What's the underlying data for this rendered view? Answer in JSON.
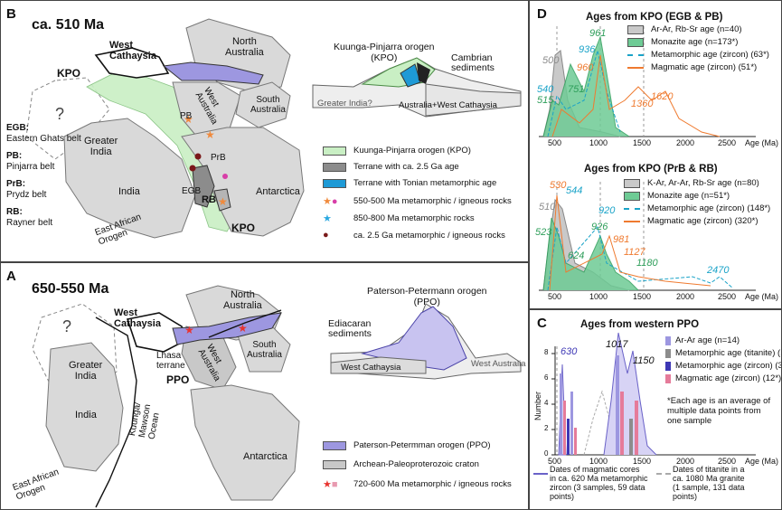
{
  "panelB": {
    "label": "B",
    "title": "ca. 510  Ma",
    "abbrev": [
      {
        "abbr": "EGB:",
        "full": "Eastern Ghats belt"
      },
      {
        "abbr": "PB:",
        "full": "Pinjarra belt"
      },
      {
        "abbr": "PrB:",
        "full": "Prydz belt"
      },
      {
        "abbr": "RB:",
        "full": "Rayner belt"
      }
    ],
    "map_labels": {
      "west_cathaysia": "West\nCathaysia",
      "kpo_left": "KPO",
      "kpo_bottom": "KPO",
      "north_australia": "North\nAustralia",
      "south_australia": "South\nAustralia",
      "west_australia": "West\nAustralia",
      "greater_india": "Greater\nIndia",
      "india": "India",
      "antarctica": "Antarctica",
      "east_african": "East African\nOrogen",
      "question": "?",
      "pb": "PB",
      "prb": "PrB",
      "egb": "EGB",
      "rb": "RB"
    },
    "section": {
      "title": "Kuunga-Pinjarra orogen\n(KPO)",
      "cambrian": "Cambrian\nsediments",
      "greater_india": "Greater India?",
      "australia": "Australia+West Cathaysia"
    },
    "legend": [
      {
        "label": "Kuunga-Pinjarra orogen (KPO)",
        "color": "#c9efc4",
        "kind": "box"
      },
      {
        "label": "Terrane with ca. 2.5 Ga age",
        "color": "#8c8c8c",
        "kind": "box"
      },
      {
        "label": "Terrane with Tonian metamorphic age",
        "color": "#1e9ad6",
        "kind": "box"
      },
      {
        "label": "550-500 Ma metamorphic / igneous rocks",
        "color": "#f08a3c",
        "kind": "starcircle"
      },
      {
        "label": "850-800 Ma metamorphic rocks",
        "color": "#29a8e0",
        "kind": "star"
      },
      {
        "label": "ca. 2.5 Ga metamorphic / igneous rocks",
        "color": "#7a1a1a",
        "kind": "circle"
      }
    ]
  },
  "panelA": {
    "label": "A",
    "title": "650-550  Ma",
    "map_labels": {
      "west_cathaysia": "West\nCathaysia",
      "lhasa": "Lhasa\nterrane",
      "ppo": "PPO",
      "north_australia": "North\nAustralia",
      "south_australia": "South\nAustralia",
      "west_australia": "West\nAustralia",
      "greater_india": "Greater\nIndia",
      "india": "India",
      "antarctica": "Antarctica",
      "east_african": "East African\nOrogen",
      "ocean": "Kuunga/\nMawson\nOcean",
      "question": "?"
    },
    "section": {
      "title": "Paterson-Petermann orogen\n(PPO)",
      "ediacaran": "Ediacaran\nsediments",
      "west_cathaysia": "West Cathaysia",
      "west_australia": "West Australia"
    },
    "legend": [
      {
        "label": "Paterson-Petermman orogen (PPO)",
        "color": "#9d97e0",
        "kind": "box"
      },
      {
        "label": "Archean-Paleoproterozoic craton",
        "color": "#c8c8c8",
        "kind": "box"
      },
      {
        "label": "720-600 Ma metamorphic / igneous rocks",
        "color": "#e8332f",
        "kind": "starsq"
      }
    ]
  },
  "panelD": {
    "label": "D",
    "top": {
      "title": "Ages from KPO (EGB & PB)",
      "legend": [
        {
          "label": "Ar-Ar, Rb-Sr age (n=40)",
          "color": "#9a9a9a"
        },
        {
          "label": "Monazite age (n=173*)",
          "color": "#2e9e5a"
        },
        {
          "label": "Metamorphic age (zircon) (63*)",
          "color": "#1aa3c8"
        },
        {
          "label": "Magmatic age (zircon) (51*)",
          "color": "#ef7a2f"
        }
      ],
      "peaks": [
        {
          "label": "500",
          "age": 500,
          "color": "#8c8c8c"
        },
        {
          "label": "540",
          "age": 540,
          "color": "#1aa3c8"
        },
        {
          "label": "515",
          "age": 515,
          "color": "#2e9e5a"
        },
        {
          "label": "751",
          "age": 751,
          "color": "#2e9e5a"
        },
        {
          "label": "936",
          "age": 936,
          "color": "#1aa3c8"
        },
        {
          "label": "960",
          "age": 960,
          "color": "#ef7a2f"
        },
        {
          "label": "961",
          "age": 961,
          "color": "#2e9e5a"
        },
        {
          "label": "1360",
          "age": 1360,
          "color": "#ef7a2f"
        },
        {
          "label": "1620",
          "age": 1620,
          "color": "#ef7a2f"
        }
      ],
      "axis_ticks": [
        "500",
        "1000",
        "1500",
        "2000",
        "2500",
        "Age (Ma)"
      ]
    },
    "bottom": {
      "title": "Ages from KPO (PrB & RB)",
      "legend": [
        {
          "label": "K-Ar, Ar-Ar, Rb-Sr age (n=80)",
          "color": "#9a9a9a"
        },
        {
          "label": "Monazite age (n=51*)",
          "color": "#2e9e5a"
        },
        {
          "label": "Metamorphic age (zircon) (148*)",
          "color": "#1aa3c8"
        },
        {
          "label": "Magmatic age (zircon) (320*)",
          "color": "#ef7a2f"
        }
      ],
      "peaks": [
        {
          "label": "530",
          "age": 530,
          "color": "#ef7a2f"
        },
        {
          "label": "510",
          "age": 510,
          "color": "#8c8c8c"
        },
        {
          "label": "544",
          "age": 544,
          "color": "#1aa3c8"
        },
        {
          "label": "523",
          "age": 523,
          "color": "#2e9e5a"
        },
        {
          "label": "624",
          "age": 624,
          "color": "#2e9e5a"
        },
        {
          "label": "920",
          "age": 920,
          "color": "#1aa3c8"
        },
        {
          "label": "926",
          "age": 926,
          "color": "#2e9e5a"
        },
        {
          "label": "981",
          "age": 981,
          "color": "#ef7a2f"
        },
        {
          "label": "1127",
          "age": 1127,
          "color": "#ef7a2f"
        },
        {
          "label": "1180",
          "age": 1180,
          "color": "#2e9e5a"
        },
        {
          "label": "2470",
          "age": 2470,
          "color": "#1aa3c8"
        }
      ],
      "axis_ticks": [
        "500",
        "1000",
        "1500",
        "2000",
        "2500",
        "Age (Ma)"
      ]
    }
  },
  "panelC": {
    "label": "C",
    "title": "Ages from western PPO",
    "legend": [
      {
        "label": "Ar-Ar age (n=14)",
        "color": "#9d97e0"
      },
      {
        "label": "Metamorphic age (titanite) (1*)",
        "color": "#8c8c8c"
      },
      {
        "label": "Metamorphic age (zircon) (3*)",
        "color": "#3d37b5"
      },
      {
        "label": "Magmatic age (zircon) (12*)",
        "color": "#e57b9a"
      }
    ],
    "note": "*Each age is an average of\nmultiple data points from\none sample",
    "peaks": [
      {
        "label": "630",
        "age": 630
      },
      {
        "label": "1017",
        "age": 1017
      },
      {
        "label": "1150",
        "age": 1150
      }
    ],
    "yaxis_label": "Number",
    "y_ticks": [
      "0",
      "2",
      "4",
      "6",
      "8"
    ],
    "x_ticks": [
      "500",
      "1000",
      "1500",
      "2000",
      "2500",
      "Age (Ma)"
    ],
    "footer_left": "Dates of magmatic cores\nin ca. 620 Ma metamorphic\nzircon (3 samples, 59 data\npoints)",
    "footer_right": "Dates of titanite in a\nca. 1080 Ma granite\n(1 sample, 131 data\npoints)"
  }
}
